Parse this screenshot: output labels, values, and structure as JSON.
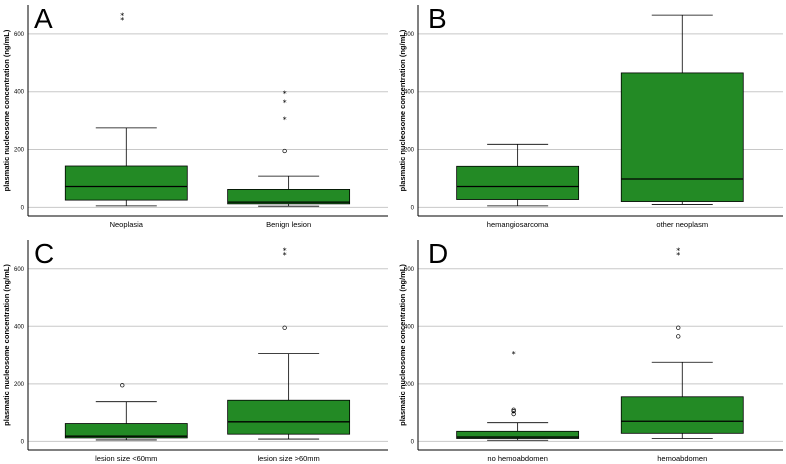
{
  "colors": {
    "box_fill": "#238a25",
    "grid": "#c8c8c8",
    "axis": "#000000"
  },
  "chart_data": [
    {
      "type": "box",
      "panel_label": "A",
      "ylabel": "plasmatic nucleosome concentration (ng/mL)",
      "yticks": [
        0,
        200,
        400,
        600
      ],
      "ylim": [
        -30,
        700
      ],
      "grid": true,
      "categories": [
        "Neoplasia",
        "Benign lesion"
      ],
      "boxes": [
        {
          "whisker_low": 5,
          "q1": 25,
          "median": 72,
          "q3": 143,
          "whisker_high": 275,
          "outliers": [],
          "extremes": [
            650,
            665
          ]
        },
        {
          "whisker_low": 4,
          "q1": 12,
          "median": 18,
          "q3": 62,
          "whisker_high": 108,
          "outliers": [
            195
          ],
          "extremes": [
            305,
            365,
            395
          ]
        }
      ]
    },
    {
      "type": "box",
      "panel_label": "B",
      "ylabel": "plasmatic nucleosome concentration (ng/mL)",
      "yticks": [
        0,
        200,
        400,
        600
      ],
      "ylim": [
        -30,
        700
      ],
      "grid": true,
      "categories": [
        "hemangiosarcoma",
        "other neoplasm"
      ],
      "boxes": [
        {
          "whisker_low": 5,
          "q1": 27,
          "median": 72,
          "q3": 142,
          "whisker_high": 218,
          "outliers": [],
          "extremes": []
        },
        {
          "whisker_low": 10,
          "q1": 20,
          "median": 98,
          "q3": 465,
          "whisker_high": 665,
          "outliers": [],
          "extremes": []
        }
      ]
    },
    {
      "type": "box",
      "panel_label": "C",
      "ylabel": "plasmatic nucleosome concentration (ng/mL)",
      "yticks": [
        0,
        200,
        400,
        600
      ],
      "ylim": [
        -30,
        700
      ],
      "grid": true,
      "categories": [
        "lesion size <60mm",
        "lesion size >60mm"
      ],
      "boxes": [
        {
          "whisker_low": 5,
          "q1": 12,
          "median": 18,
          "q3": 62,
          "whisker_high": 138,
          "outliers": [
            195
          ],
          "extremes": []
        },
        {
          "whisker_low": 8,
          "q1": 25,
          "median": 68,
          "q3": 143,
          "whisker_high": 305,
          "outliers": [
            395
          ],
          "extremes": [
            650,
            665
          ]
        }
      ]
    },
    {
      "type": "box",
      "panel_label": "D",
      "ylabel": "plasmatic nucleosome concentration (ng/mL)",
      "yticks": [
        0,
        200,
        400,
        600
      ],
      "ylim": [
        -30,
        700
      ],
      "grid": true,
      "categories": [
        "no hemoabdomen",
        "hemoabdomen"
      ],
      "boxes": [
        {
          "whisker_low": 4,
          "q1": 10,
          "median": 15,
          "q3": 35,
          "whisker_high": 65,
          "outliers": [
            95,
            105,
            110
          ],
          "extremes": [
            305
          ]
        },
        {
          "whisker_low": 10,
          "q1": 28,
          "median": 70,
          "q3": 155,
          "whisker_high": 275,
          "outliers": [
            365,
            395
          ],
          "extremes": [
            650,
            665
          ]
        }
      ]
    }
  ]
}
